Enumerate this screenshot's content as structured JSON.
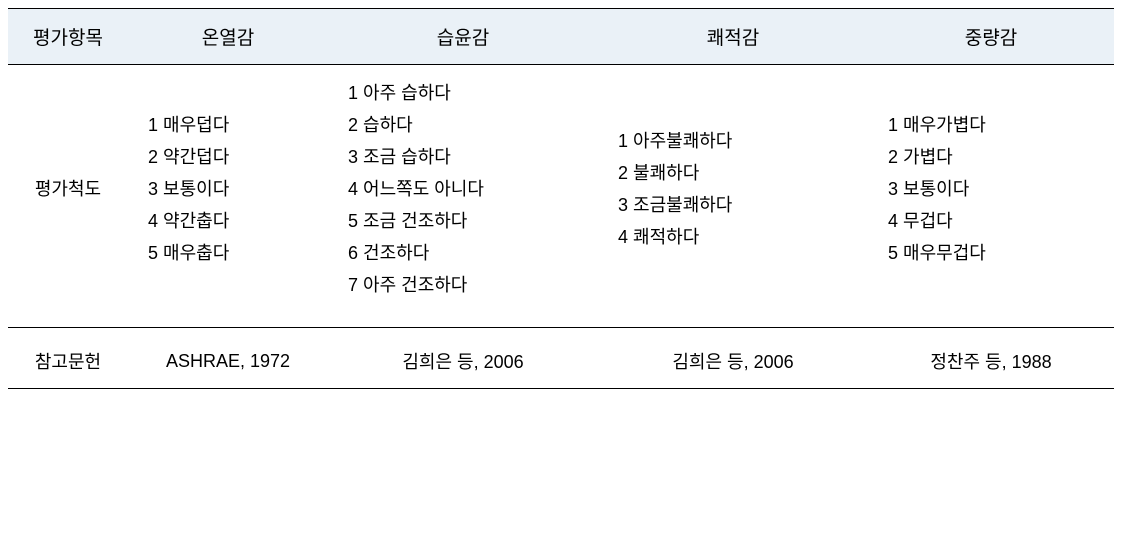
{
  "table": {
    "header_bg": "#eaf1f7",
    "border_color": "#000000",
    "text_color": "#000000",
    "font_size": 18,
    "header_font_size": 19,
    "headers": {
      "col0": "평가항목",
      "col1": "온열감",
      "col2": "습윤감",
      "col3": "쾌적감",
      "col4": "중량감"
    },
    "row_labels": {
      "scale": "평가척도",
      "reference": "참고문헌"
    },
    "scales": {
      "thermal": {
        "item1": "1 매우덥다",
        "item2": "2 약간덥다",
        "item3": "3 보통이다",
        "item4": "4 약간춥다",
        "item5": "5 매우춥다"
      },
      "humidity": {
        "item1": "1 아주 습하다",
        "item2": "2 습하다",
        "item3": "3 조금 습하다",
        "item4": "4 어느쪽도 아니다",
        "item5": "5 조금 건조하다",
        "item6": "6 건조하다",
        "item7": "7 아주 건조하다"
      },
      "comfort": {
        "item1": "1 아주불쾌하다",
        "item2": "2 불쾌하다",
        "item3": "3 조금불쾌하다",
        "item4": "4 쾌적하다"
      },
      "weight": {
        "item1": "1 매우가볍다",
        "item2": "2 가볍다",
        "item3": "3 보통이다",
        "item4": "4 무겁다",
        "item5": "5 매우무겁다"
      }
    },
    "references": {
      "thermal": "ASHRAE, 1972",
      "humidity": "김희은 등, 2006",
      "comfort": "김희은 등, 2006",
      "weight": "정찬주 등, 1988"
    }
  }
}
